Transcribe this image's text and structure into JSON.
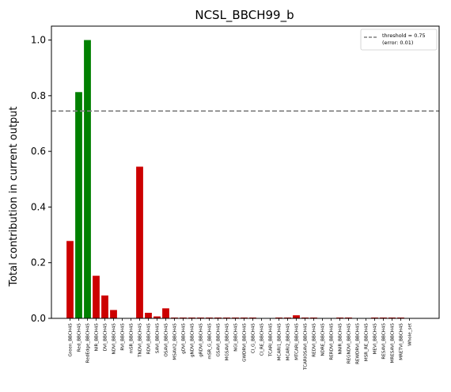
{
  "chart_data": {
    "type": "bar",
    "title": "NCSL_BBCH99_b",
    "xlabel": "",
    "ylabel": "Total contribution in current output",
    "ylim": [
      0,
      1.05
    ],
    "yticks": [
      "0.0",
      "0.2",
      "0.4",
      "0.6",
      "0.8",
      "1.0"
    ],
    "categories": [
      "Green_BBCH45",
      "Red_BBCH45",
      "RedEdge_BBCH45",
      "NIR_BBCH45",
      "DVI_BBCH45",
      "NDVI_BBCH45",
      "RVI_BBCH45",
      "mSR_BBCH45",
      "TNDVI_BBCH45",
      "RDVI_BBCH45",
      "SAVI_BBCH45",
      "OSAVI_BBCH45",
      "MSAVI2_BBCH45",
      "gDVI_BBCH45",
      "gNDVI_BBCH45",
      "gRDVI_BBCH45",
      "mSR_G_BBCH45",
      "GSAVI_BBCH45",
      "MGSAVI_BBCH45",
      "NGI_BBCH45",
      "GWDRVI_BBCH45",
      "CI_G_BBCH45",
      "CI_RE_BBCH45",
      "TCARI_BBCH45",
      "MCARI1_BBCH45",
      "MCARI2_BBCH45",
      "MTCARI_BBCH45",
      "TCARIOSAVI_BBCH45",
      "REDVI_BBCH45",
      "NDRE_BBCH45",
      "RERDVI_BBCH45",
      "NNIR_BBCH45",
      "REGNDVI_BBCH45",
      "REWDRVI_BBCH45",
      "MSR_RE_BBCH45",
      "MEVI_BBCH45",
      "RESAVI_BBCH45",
      "MRESAVI_BBCH45",
      "MRETVI_BBCH45",
      "Whole_set"
    ],
    "values": [
      0.278,
      0.813,
      1.0,
      0.153,
      0.082,
      0.03,
      0.0,
      0.0,
      0.545,
      0.02,
      0.007,
      0.036,
      0.003,
      0.003,
      0.003,
      0.003,
      0.003,
      0.003,
      0.003,
      0.003,
      0.003,
      0.003,
      0.0,
      0.0,
      0.003,
      0.003,
      0.011,
      0.003,
      0.003,
      0.0,
      0.0,
      0.003,
      0.003,
      0.0,
      0.0,
      0.003,
      0.003,
      0.003,
      0.003,
      0.0
    ],
    "bar_colors": [
      "#cc0000",
      "#008000",
      "#008000",
      "#cc0000",
      "#cc0000",
      "#cc0000",
      "#cc0000",
      "#cc0000",
      "#cc0000",
      "#cc0000",
      "#cc0000",
      "#cc0000",
      "#cc0000",
      "#cc0000",
      "#cc0000",
      "#cc0000",
      "#cc0000",
      "#cc0000",
      "#cc0000",
      "#cc0000",
      "#cc0000",
      "#cc0000",
      "#cc0000",
      "#cc0000",
      "#cc0000",
      "#cc0000",
      "#cc0000",
      "#cc0000",
      "#cc0000",
      "#cc0000",
      "#cc0000",
      "#cc0000",
      "#cc0000",
      "#cc0000",
      "#cc0000",
      "#cc0000",
      "#cc0000",
      "#cc0000",
      "#cc0000",
      "#cc0000"
    ],
    "threshold": {
      "value": 0.745,
      "color": "#808080",
      "label_line1": "threshold = 0.75",
      "label_line2": "(error: 0.01)"
    },
    "legend_position": "top-right",
    "grid": false
  }
}
